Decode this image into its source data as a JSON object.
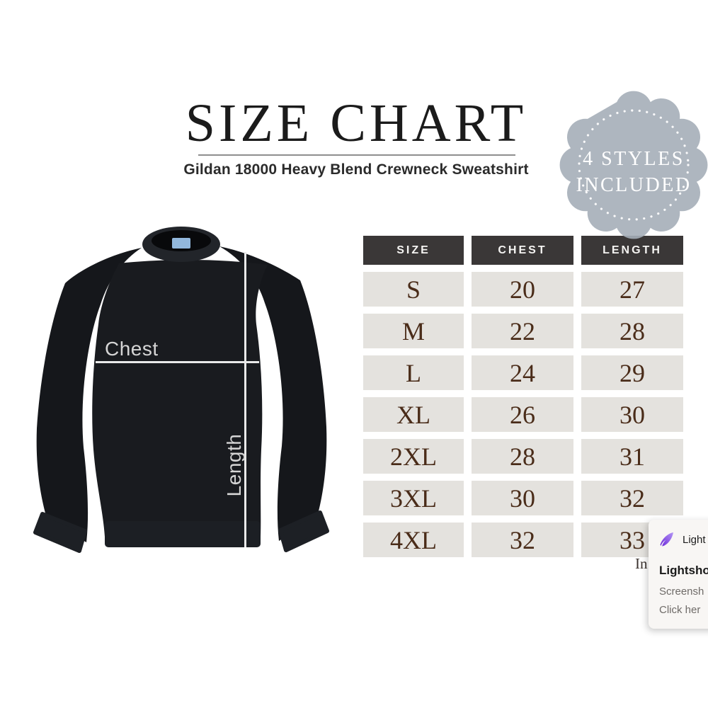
{
  "header": {
    "title": "SIZE CHART",
    "subtitle": "Gildan 18000 Heavy Blend Crewneck Sweatshirt"
  },
  "badge": {
    "line1": "4 STYLES",
    "line2": "INCLUDED",
    "fill_color": "#a5aeb8",
    "dot_color": "#ffffff",
    "text_color": "#ffffff"
  },
  "product_diagram": {
    "chest_label": "Chest",
    "length_label": "Length",
    "garment_color": "#17191d",
    "collar_tag_color": "#92b8dd",
    "measure_line_color": "#e9e9e9"
  },
  "size_table": {
    "columns": [
      "SIZE",
      "CHEST",
      "LENGTH"
    ],
    "rows": [
      [
        "S",
        "20",
        "27"
      ],
      [
        "M",
        "22",
        "28"
      ],
      [
        "L",
        "24",
        "29"
      ],
      [
        "XL",
        "26",
        "30"
      ],
      [
        "2XL",
        "28",
        "31"
      ],
      [
        "3XL",
        "30",
        "32"
      ],
      [
        "4XL",
        "32",
        "33"
      ]
    ],
    "unit_note": "In",
    "header_bg": "#3a3737",
    "header_text_color": "#f5f4f2",
    "cell_bg": "#e4e2de",
    "cell_text_color": "#4a2c19"
  },
  "notification": {
    "app_name": "Light",
    "title": "Lightsho",
    "body_line1": "Screensh",
    "body_line2": "Click her",
    "icon": "feather-icon",
    "icon_color": "#8b5cf6"
  }
}
